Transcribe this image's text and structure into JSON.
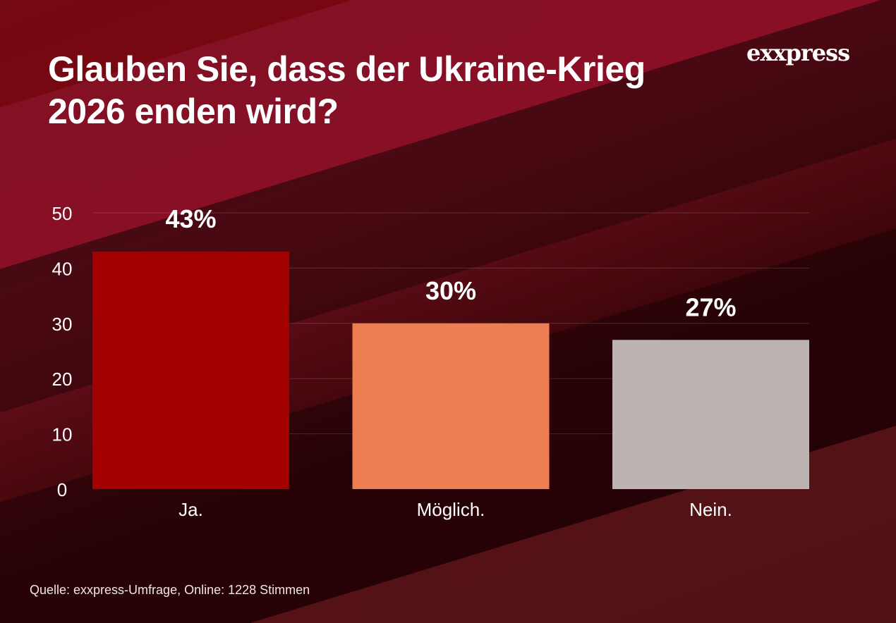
{
  "title_line1": "Glauben Sie, dass der Ukraine-Krieg",
  "title_line2": "2026 enden wird?",
  "logo": "exxpress",
  "source": "Quelle:  exxpress-Umfrage, Online: 1228 Stimmen",
  "chart_data": {
    "type": "bar",
    "title": "Glauben Sie, dass der Ukraine-Krieg 2026 enden wird?",
    "categories": [
      "Ja.",
      "Möglich.",
      "Nein."
    ],
    "values": [
      43,
      30,
      27
    ],
    "data_labels": [
      "43%",
      "30%",
      "27%"
    ],
    "colors": [
      "#a30000",
      "#ec7e52",
      "#bcb3b2"
    ],
    "ylim": [
      0,
      50
    ],
    "yticks": [
      0,
      10,
      20,
      30,
      40,
      50
    ],
    "grid": true,
    "xlabel": "",
    "ylabel": ""
  }
}
